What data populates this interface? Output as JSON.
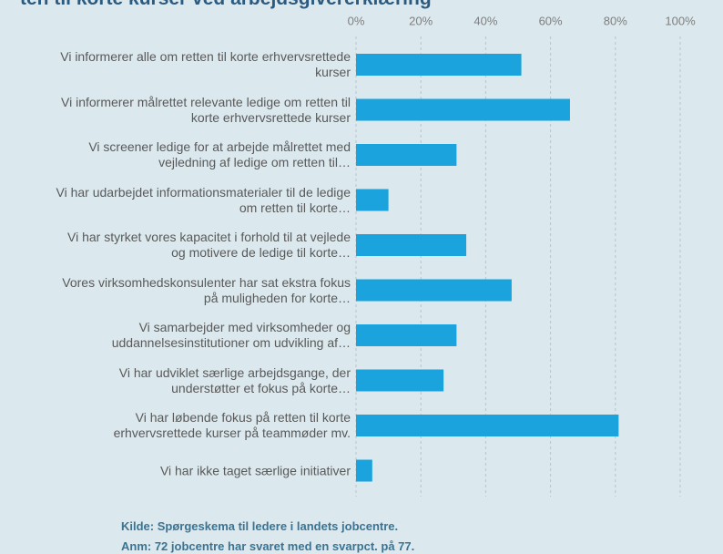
{
  "chart_data": {
    "type": "hbar",
    "title": "ten til korte kurser ved arbejdsgivererklæring",
    "categories": [
      "Vi informerer alle om retten til korte erhvervsrettede kurser",
      "Vi informerer målrettet relevante ledige om retten til korte erhvervsrettede kurser",
      "Vi screener ledige for at arbejde målrettet med vejledning af ledige om retten til…",
      "Vi har udarbejdet informationsmaterialer til de ledige om retten til korte…",
      "Vi har styrket vores kapacitet i forhold til at vejlede og motivere de ledige til korte…",
      "Vores virksomhedskonsulenter har sat ekstra fokus på muligheden for korte…",
      "Vi samarbejder med virksomheder og uddannelsesinstitutioner om udvikling af…",
      "Vi har udviklet særlige arbejdsgange, der understøtter et fokus på korte…",
      "Vi har løbende fokus på retten til korte erhvervsrettede kurser på teammøder mv.",
      "Vi har ikke taget særlige initiativer"
    ],
    "values": [
      51,
      66,
      31,
      10,
      34,
      48,
      31,
      27,
      81,
      5
    ],
    "color": "#1aa3dd",
    "xlim": [
      0,
      100
    ],
    "xticks": [
      {
        "value": 0,
        "label": "0%"
      },
      {
        "value": 20,
        "label": "20%"
      },
      {
        "value": 40,
        "label": "40%"
      },
      {
        "value": 60,
        "label": "60%"
      },
      {
        "value": 80,
        "label": "80%"
      },
      {
        "value": 100,
        "label": "100%"
      }
    ],
    "grid": true,
    "source": "Kilde: Spørgeskema til ledere i landets jobcentre.",
    "note": "Anm: 72 jobcentre har svaret med en svarpct. på 77."
  }
}
